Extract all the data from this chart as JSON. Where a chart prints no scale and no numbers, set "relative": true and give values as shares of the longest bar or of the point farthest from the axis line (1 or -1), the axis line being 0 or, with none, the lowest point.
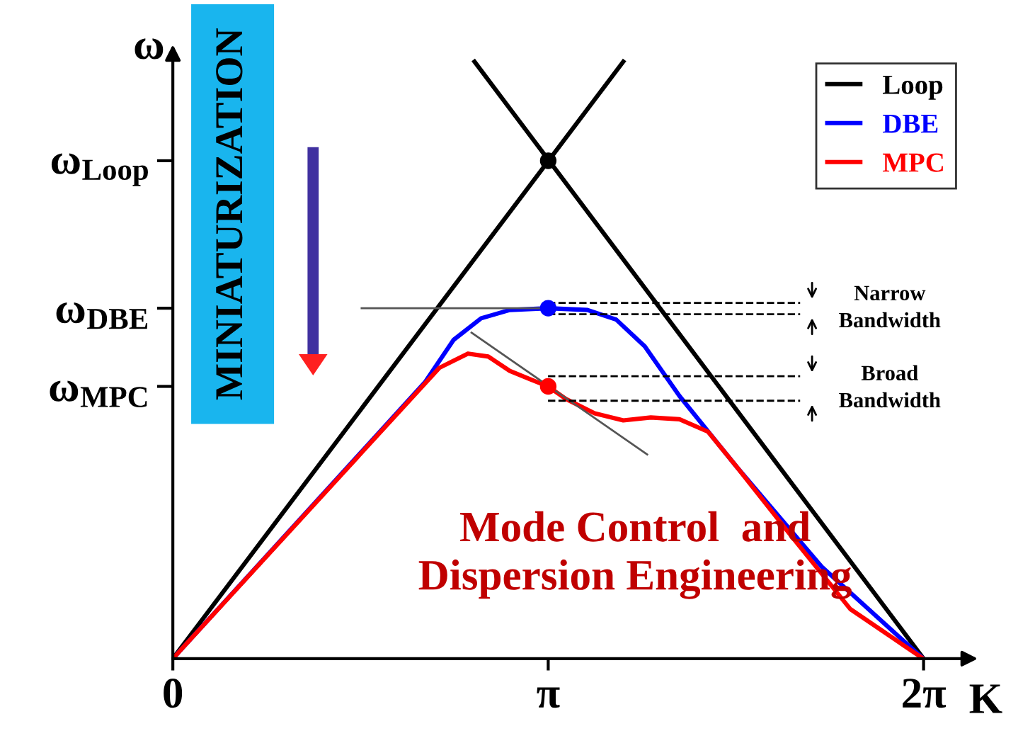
{
  "chart_data": {
    "type": "line",
    "relative": true,
    "xlabel": "K",
    "ylabel": "ω",
    "xlim": [
      0,
      6.67
    ],
    "xticks": [
      0,
      {
        "value": 3.1416,
        "label": "π"
      },
      {
        "value": 6.2832,
        "label": "2π"
      }
    ],
    "legend": "top right",
    "grid": false,
    "series": [
      {
        "name": "Loop",
        "color": "#000000",
        "x": [
          0,
          3.77,
          3.0,
          2.525,
          6.283
        ],
        "values": [
          0,
          1,
          null,
          1,
          0
        ]
      },
      {
        "name": "DBE",
        "color": "#0000ff",
        "x": [
          0,
          2.11,
          2.35,
          2.58,
          2.82,
          3.14,
          3.47,
          3.71,
          3.95,
          4.24,
          4.72,
          5.43,
          6.28
        ],
        "values": [
          0,
          0.463,
          0.534,
          0.57,
          0.584,
          0.587,
          0.584,
          0.568,
          0.523,
          0.44,
          0.321,
          0.154,
          0
        ]
      },
      {
        "name": "MPC",
        "color": "#ff0000",
        "x": [
          0,
          2.23,
          2.47,
          2.64,
          2.82,
          2.99,
          3.14,
          3.29,
          3.53,
          3.77,
          4.0,
          4.24,
          4.48,
          4.72,
          5.19,
          5.67,
          6.28
        ],
        "values": [
          0,
          0.487,
          0.511,
          0.506,
          0.482,
          0.468,
          0.456,
          0.435,
          0.411,
          0.399,
          0.404,
          0.401,
          0.38,
          0.321,
          0.202,
          0.083,
          0
        ]
      },
      {
        "type": "line",
        "color": "#555555",
        "x": [
          1.58,
          3.14
        ],
        "values": [
          0.587,
          0.587
        ]
      },
      {
        "type": "line",
        "color": "#555555",
        "x": [
          2.5,
          3.97
        ],
        "values": [
          0.546,
          0.342
        ]
      },
      {
        "type": "line",
        "color": "#000000",
        "line_style": "dashed",
        "x": [
          3.14,
          5.25
        ],
        "values": [
          0.596,
          0.596
        ]
      },
      {
        "type": "line",
        "color": "#000000",
        "line_style": "dashed",
        "x": [
          3.14,
          5.25
        ],
        "values": [
          0.577,
          0.577
        ]
      },
      {
        "type": "line",
        "color": "#000000",
        "line_style": "dashed",
        "x": [
          3.14,
          5.25
        ],
        "values": [
          0.473,
          0.473
        ]
      },
      {
        "type": "line",
        "color": "#000000",
        "line_style": "dashed",
        "x": [
          3.14,
          5.25
        ],
        "values": [
          0.432,
          0.432
        ]
      },
      {
        "type": "scatter",
        "marker": "circle",
        "colors": [
          "#000000",
          "#0000ff",
          "#ff0000"
        ],
        "x": [
          3.1416,
          3.1416,
          3.1416
        ],
        "values": [
          0.834,
          0.587,
          0.456
        ]
      }
    ],
    "annotations": [
      "MINIATURIZATION",
      "Mode Control  and\nDispersion Engineering",
      "Narrow\nBandwidth",
      "Broad\nBandwidth",
      "ω$_{Loop}$",
      "ω$_{DBE}$",
      "ω$_{MPC}$"
    ]
  }
}
